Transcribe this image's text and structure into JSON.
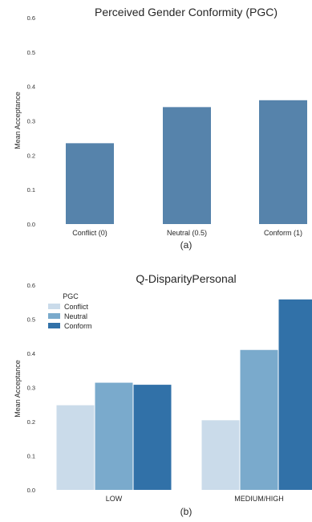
{
  "chart_data": [
    {
      "type": "bar",
      "title": "Perceived Gender Conformity (PGC)",
      "ylabel": "Mean Acceptance",
      "xlabel": "",
      "panel_label": "(a)",
      "categories": [
        "Conflict (0)",
        "Neutral (0.5)",
        "Conform (1)"
      ],
      "values": [
        0.235,
        0.34,
        0.36
      ],
      "ylim": [
        0,
        0.6
      ],
      "yticks": [
        "0.0",
        "0.1",
        "0.2",
        "0.3",
        "0.4",
        "0.5",
        "0.6"
      ],
      "color": "#5683ab",
      "grid": false
    },
    {
      "type": "bar",
      "title": "Q-DisparityPersonal",
      "ylabel": "Mean Acceptance",
      "xlabel": "",
      "panel_label": "(b)",
      "categories": [
        "LOW",
        "MEDIUM/HIGH"
      ],
      "legend_title": "PGC",
      "legend_position": "top-left",
      "series": [
        {
          "name": "Conflict",
          "values": [
            0.248,
            0.204
          ],
          "color": "#cadbea"
        },
        {
          "name": "Neutral",
          "values": [
            0.314,
            0.41
          ],
          "color": "#7aaacc"
        },
        {
          "name": "Conform",
          "values": [
            0.308,
            0.558
          ],
          "color": "#3171a8"
        }
      ],
      "ylim": [
        0,
        0.6
      ],
      "yticks": [
        "0.0",
        "0.1",
        "0.2",
        "0.3",
        "0.4",
        "0.5",
        "0.6"
      ],
      "grid": false
    }
  ]
}
